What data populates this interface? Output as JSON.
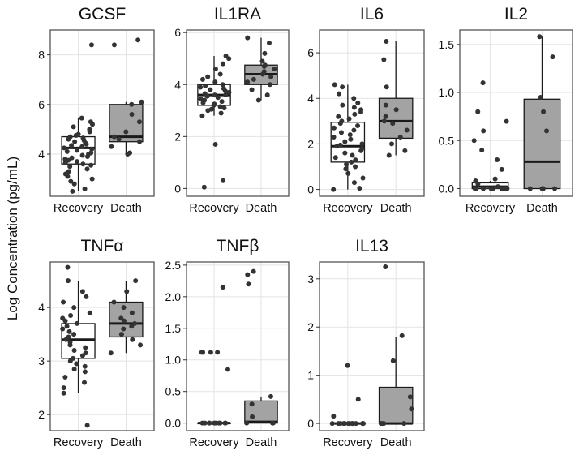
{
  "figure": {
    "ylabel": "Log Concentration (pg/mL)"
  },
  "chart_data": [
    {
      "type": "boxplot",
      "title": "GCSF",
      "categories": [
        "Recovery",
        "Death"
      ],
      "ylim": [
        2.3,
        9.0
      ],
      "yticks": [
        4,
        6,
        8
      ],
      "grid": true,
      "boxes": [
        {
          "category": "Recovery",
          "min": 2.5,
          "q1": 3.6,
          "median": 4.25,
          "q3": 4.7,
          "max": 5.45,
          "points": [
            2.5,
            2.6,
            2.8,
            2.9,
            3.0,
            3.1,
            3.2,
            3.3,
            3.4,
            3.5,
            3.55,
            3.6,
            3.65,
            3.7,
            3.75,
            3.8,
            3.85,
            3.9,
            3.95,
            4.0,
            4.05,
            4.1,
            4.15,
            4.2,
            4.25,
            4.3,
            4.35,
            4.4,
            4.45,
            4.5,
            4.55,
            4.6,
            4.65,
            4.7,
            4.75,
            4.8,
            4.9,
            5.0,
            5.1,
            5.2,
            5.3,
            5.45,
            8.4
          ]
        },
        {
          "category": "Death",
          "min": 4.0,
          "q1": 4.5,
          "median": 4.7,
          "q3": 6.0,
          "max": 6.1,
          "points": [
            4.0,
            4.05,
            4.3,
            4.5,
            4.6,
            4.7,
            4.9,
            5.3,
            5.6,
            6.0,
            6.1,
            8.4,
            8.6
          ]
        }
      ]
    },
    {
      "type": "boxplot",
      "title": "IL1RA",
      "categories": [
        "Recovery",
        "Death"
      ],
      "ylim": [
        -0.3,
        6.1
      ],
      "yticks": [
        0,
        2,
        4,
        6
      ],
      "grid": true,
      "boxes": [
        {
          "category": "Recovery",
          "min": 2.8,
          "q1": 3.2,
          "median": 3.6,
          "q3": 4.0,
          "max": 5.1,
          "points": [
            0.05,
            0.3,
            1.7,
            2.8,
            2.9,
            3.0,
            3.05,
            3.1,
            3.15,
            3.2,
            3.25,
            3.3,
            3.35,
            3.4,
            3.45,
            3.5,
            3.55,
            3.6,
            3.6,
            3.65,
            3.7,
            3.75,
            3.8,
            3.85,
            3.9,
            3.95,
            4.0,
            4.1,
            4.2,
            4.3,
            4.4,
            4.6,
            4.8,
            5.0,
            5.1
          ]
        },
        {
          "category": "Death",
          "min": 3.4,
          "q1": 4.0,
          "median": 4.4,
          "q3": 4.75,
          "max": 5.8,
          "points": [
            3.4,
            3.6,
            3.8,
            4.0,
            4.1,
            4.2,
            4.3,
            4.4,
            4.5,
            4.6,
            4.7,
            4.75,
            4.9,
            5.2,
            5.6,
            5.8
          ]
        }
      ]
    },
    {
      "type": "boxplot",
      "title": "IL6",
      "categories": [
        "Recovery",
        "Death"
      ],
      "ylim": [
        -0.3,
        7.0
      ],
      "yticks": [
        0,
        2,
        4,
        6
      ],
      "grid": true,
      "boxes": [
        {
          "category": "Recovery",
          "min": 0.0,
          "q1": 1.2,
          "median": 1.9,
          "q3": 2.95,
          "max": 4.6,
          "points": [
            0.0,
            0.05,
            0.3,
            0.5,
            0.7,
            0.9,
            1.0,
            1.1,
            1.2,
            1.3,
            1.4,
            1.5,
            1.6,
            1.7,
            1.8,
            1.9,
            1.95,
            2.0,
            2.1,
            2.2,
            2.3,
            2.4,
            2.5,
            2.6,
            2.7,
            2.8,
            2.9,
            3.0,
            3.1,
            3.2,
            3.3,
            3.4,
            3.5,
            3.6,
            3.7,
            3.8,
            4.0,
            4.2,
            4.5,
            4.6
          ]
        },
        {
          "category": "Death",
          "min": 1.5,
          "q1": 2.25,
          "median": 3.0,
          "q3": 4.0,
          "max": 6.5,
          "points": [
            1.5,
            1.7,
            2.0,
            2.3,
            2.6,
            2.9,
            3.0,
            3.2,
            3.5,
            3.7,
            4.5,
            5.7,
            6.5
          ]
        }
      ]
    },
    {
      "type": "boxplot",
      "title": "IL2",
      "categories": [
        "Recovery",
        "Death"
      ],
      "ylim": [
        -0.08,
        1.65
      ],
      "yticks": [
        0.0,
        0.5,
        1.0,
        1.5
      ],
      "grid": true,
      "boxes": [
        {
          "category": "Recovery",
          "min": 0.0,
          "q1": 0.0,
          "median": 0.02,
          "q3": 0.06,
          "max": 0.08,
          "points": [
            0.0,
            0.0,
            0.0,
            0.0,
            0.0,
            0.0,
            0.0,
            0.0,
            0.0,
            0.0,
            0.02,
            0.05,
            0.08,
            0.1,
            0.2,
            0.3,
            0.4,
            0.5,
            0.6,
            0.7,
            0.8,
            1.1
          ]
        },
        {
          "category": "Death",
          "min": 0.0,
          "q1": 0.0,
          "median": 0.28,
          "q3": 0.93,
          "max": 1.58,
          "points": [
            0.0,
            0.0,
            0.0,
            0.0,
            0.6,
            0.8,
            0.95,
            1.37,
            1.58
          ]
        }
      ]
    },
    {
      "type": "boxplot",
      "title": "TNFα",
      "categories": [
        "Recovery",
        "Death"
      ],
      "ylim": [
        1.7,
        4.85
      ],
      "yticks": [
        2,
        3,
        4
      ],
      "grid": true,
      "boxes": [
        {
          "category": "Recovery",
          "min": 2.4,
          "q1": 3.05,
          "median": 3.4,
          "q3": 3.7,
          "max": 4.5,
          "points": [
            1.8,
            2.4,
            2.5,
            2.6,
            2.7,
            2.8,
            2.85,
            2.9,
            2.95,
            3.0,
            3.05,
            3.1,
            3.15,
            3.2,
            3.25,
            3.3,
            3.35,
            3.4,
            3.45,
            3.5,
            3.55,
            3.6,
            3.65,
            3.7,
            3.75,
            3.8,
            3.85,
            3.9,
            4.0,
            4.1,
            4.2,
            4.3,
            4.5,
            4.75
          ]
        },
        {
          "category": "Death",
          "min": 3.15,
          "q1": 3.45,
          "median": 3.7,
          "q3": 4.1,
          "max": 4.5,
          "points": [
            3.15,
            3.3,
            3.4,
            3.5,
            3.6,
            3.65,
            3.7,
            3.75,
            3.8,
            3.9,
            4.0,
            4.1,
            4.3,
            4.5
          ]
        }
      ]
    },
    {
      "type": "boxplot",
      "title": "TNFβ",
      "categories": [
        "Recovery",
        "Death"
      ],
      "ylim": [
        -0.12,
        2.55
      ],
      "yticks": [
        0.0,
        0.5,
        1.0,
        1.5,
        2.0,
        2.5
      ],
      "grid": true,
      "boxes": [
        {
          "category": "Recovery",
          "min": 0.0,
          "q1": 0.0,
          "median": 0.0,
          "q3": 0.0,
          "max": 0.0,
          "points": [
            0.0,
            0.0,
            0.0,
            0.0,
            0.0,
            0.0,
            0.0,
            0.0,
            0.0,
            0.0,
            0.85,
            1.12,
            1.12,
            1.12,
            1.12,
            2.15
          ]
        },
        {
          "category": "Death",
          "min": 0.0,
          "q1": 0.0,
          "median": 0.02,
          "q3": 0.35,
          "max": 0.42,
          "points": [
            0.0,
            0.0,
            0.0,
            0.1,
            0.3,
            0.42,
            2.2,
            2.35,
            2.4
          ]
        }
      ]
    },
    {
      "type": "boxplot",
      "title": "IL13",
      "categories": [
        "Recovery",
        "Death"
      ],
      "ylim": [
        -0.15,
        3.35
      ],
      "yticks": [
        0,
        1,
        2,
        3
      ],
      "grid": true,
      "boxes": [
        {
          "category": "Recovery",
          "min": 0.0,
          "q1": 0.0,
          "median": 0.0,
          "q3": 0.0,
          "max": 0.0,
          "points": [
            0.0,
            0.0,
            0.0,
            0.0,
            0.0,
            0.0,
            0.0,
            0.0,
            0.0,
            0.0,
            0.0,
            0.0,
            0.15,
            0.5,
            1.2
          ]
        },
        {
          "category": "Death",
          "min": 0.0,
          "q1": 0.0,
          "median": 0.0,
          "q3": 0.75,
          "max": 1.8,
          "points": [
            0.0,
            0.0,
            0.0,
            0.0,
            0.3,
            0.55,
            1.3,
            1.82,
            3.25
          ]
        }
      ]
    }
  ],
  "colors": {
    "recovery_fill": "#ffffff",
    "death_fill": "#a3a3a3",
    "box_stroke": "#1a1a1a",
    "point": "#333333",
    "grid": "#e3e3e3",
    "panel_border": "#555555"
  }
}
